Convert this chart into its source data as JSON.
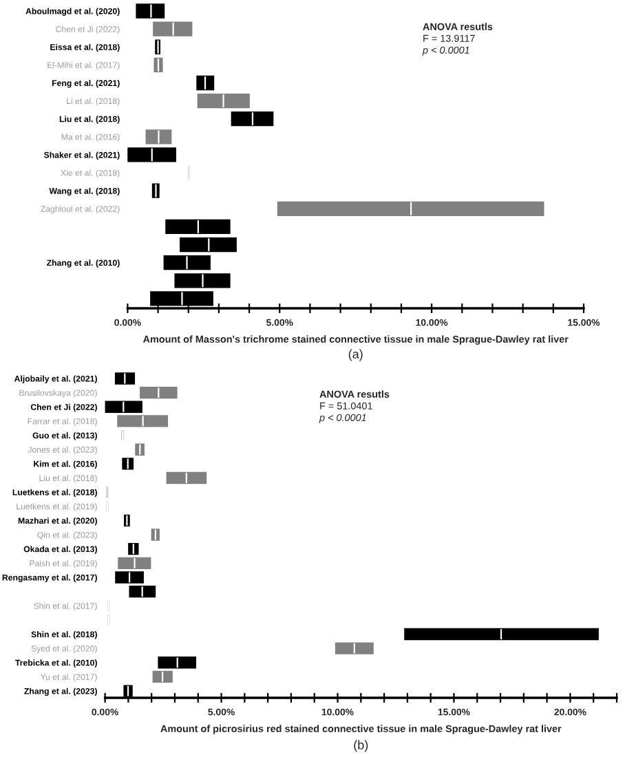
{
  "chart_data": [
    {
      "type": "box",
      "orientation": "horizontal",
      "grid": false,
      "xlabel": "Amount of Masson's trichrome stained connective tissue in male Sprague-Dawley rat liver",
      "annotations": [
        "ANOVA resutls",
        "F = 13.9117",
        "p < 0.0001",
        "(a)"
      ],
      "categories": [
        "Aboulmagd et al. (2020)",
        "Chen et Ji (2022)",
        "Eissa et al. (2018)",
        "El-Mihi et al. (2017)",
        "Feng et al. (2021)",
        "Li et al. (2018)",
        "Liu et al. (2018)",
        "Ma et al. (2016)",
        "Shaker et al. (2021)",
        "Xie et al. (2018)",
        "Wang et al. (2018)",
        "Zaghloul et al. (2022)",
        null,
        null,
        "Zhang et al. (2010)",
        null,
        null
      ],
      "colors": [
        "#000000",
        "#808080",
        "#000000",
        "#808080",
        "#000000",
        "#808080",
        "#000000",
        "#808080",
        "#000000",
        "#808080",
        "#000000",
        "#808080",
        "#000000",
        "#000000",
        "#000000",
        "#000000",
        "#000000"
      ],
      "boxes": [
        {
          "low": 0.3,
          "q1": 0.3,
          "median": 0.77,
          "q3": 1.19,
          "high": 1.19
        },
        {
          "low": 0.86,
          "q1": 0.86,
          "median": 1.5,
          "q3": 2.1,
          "high": 2.1
        },
        {
          "low": 0.93,
          "q1": 0.93,
          "median": 1.0,
          "q3": 1.05,
          "high": 1.05
        },
        {
          "low": 0.89,
          "q1": 0.89,
          "median": 1.01,
          "q3": 1.13,
          "high": 1.13
        },
        {
          "low": 2.29,
          "q1": 2.29,
          "median": 2.55,
          "q3": 2.82,
          "high": 2.82
        },
        {
          "low": 2.32,
          "q1": 2.32,
          "median": 3.15,
          "q3": 3.99,
          "high": 3.99
        },
        {
          "low": 3.43,
          "q1": 3.43,
          "median": 4.11,
          "q3": 4.77,
          "high": 4.77
        },
        {
          "low": 0.62,
          "q1": 0.62,
          "median": 1.02,
          "q3": 1.42,
          "high": 1.42
        },
        {
          "low": 0.0,
          "q1": 0.0,
          "median": 0.8,
          "q3": 1.57,
          "high": 1.57
        },
        {
          "low": 2.02,
          "q1": 2.02,
          "median": 2.02,
          "q3": 2.02,
          "high": 2.02
        },
        {
          "low": 0.83,
          "q1": 0.83,
          "median": 0.93,
          "q3": 1.02,
          "high": 1.02
        },
        {
          "low": 4.95,
          "q1": 4.95,
          "median": 9.32,
          "q3": 13.67,
          "high": 13.67
        },
        {
          "low": 1.27,
          "q1": 1.27,
          "median": 2.32,
          "q3": 3.35,
          "high": 3.35
        },
        {
          "low": 1.74,
          "q1": 1.74,
          "median": 2.67,
          "q3": 3.56,
          "high": 3.56
        },
        {
          "low": 1.21,
          "q1": 1.21,
          "median": 1.95,
          "q3": 2.7,
          "high": 2.7
        },
        {
          "low": 1.57,
          "q1": 1.57,
          "median": 2.47,
          "q3": 3.35,
          "high": 3.35
        },
        {
          "low": 0.77,
          "q1": 0.77,
          "median": 1.79,
          "q3": 2.79,
          "high": 2.79
        }
      ],
      "xlim": [
        0,
        15
      ],
      "xticks": [
        {
          "value": 0,
          "label": "0.00%"
        },
        {
          "value": 1,
          "label": null
        },
        {
          "value": 2,
          "label": null
        },
        {
          "value": 3,
          "label": null
        },
        {
          "value": 4,
          "label": null
        },
        {
          "value": 5,
          "label": "5.00%"
        },
        {
          "value": 6,
          "label": null
        },
        {
          "value": 7,
          "label": null
        },
        {
          "value": 8,
          "label": null
        },
        {
          "value": 9,
          "label": null
        },
        {
          "value": 10,
          "label": "10.00%"
        },
        {
          "value": 11,
          "label": null
        },
        {
          "value": 12,
          "label": null
        },
        {
          "value": 13,
          "label": null
        },
        {
          "value": 14,
          "label": null
        },
        {
          "value": 15,
          "label": "15.00%"
        }
      ]
    },
    {
      "type": "box",
      "orientation": "horizontal",
      "grid": false,
      "xlabel": "Amount of picrosirius red stained connective tissue in male Sprague-Dawley rat liver",
      "annotations": [
        "ANOVA resutls",
        "F = 51.0401",
        "p < 0.0001",
        "(b)"
      ],
      "categories": [
        "Aljobaily et al. (2021)",
        "Brusilovskaya (2020)",
        "Chen et Ji (2022)",
        "Farrar et al. (2018)",
        "Guo et al. (2013)",
        "Jones et al. (2023)",
        "Kim et al. (2016)",
        "Liu et al. (2018)",
        "Luetkens et al. (2018)",
        "Luetkens et al. (2019)",
        "Mazhari et al. (2020)",
        "Qin et al. (2023)",
        "Okada et al. (2013)",
        "Paish et al. (2019)",
        "Rengasamy et al. (2017)",
        null,
        "Shin et al. (2017)",
        null,
        "Shin et al. (2018)",
        "Syed et al. (2020)",
        "Trebicka et al. (2010)",
        "Yu et al. (2017)",
        "Zhang et al. (2023)"
      ],
      "colors": [
        "#000000",
        "#808080",
        "#000000",
        "#808080",
        "#000000",
        "#808080",
        "#000000",
        "#808080",
        "#000000",
        "#808080",
        "#000000",
        "#808080",
        "#000000",
        "#808080",
        "#000000",
        "#000000",
        "#808080",
        "#808080",
        "#000000",
        "#808080",
        "#000000",
        "#808080",
        "#000000"
      ],
      "boxes": [
        {
          "low": 0.46,
          "q1": 0.46,
          "median": 0.85,
          "q3": 1.25,
          "high": 1.25
        },
        {
          "low": 1.53,
          "q1": 1.53,
          "median": 2.3,
          "q3": 3.07,
          "high": 3.07
        },
        {
          "low": 0.02,
          "q1": 0.02,
          "median": 0.79,
          "q3": 1.57,
          "high": 1.57
        },
        {
          "low": 0.56,
          "q1": 0.56,
          "median": 1.63,
          "q3": 2.67,
          "high": 2.67
        },
        {
          "low": 0.75,
          "q1": 0.75,
          "median": 0.75,
          "q3": 0.75,
          "high": 0.75
        },
        {
          "low": 1.33,
          "q1": 1.33,
          "median": 1.5,
          "q3": 1.66,
          "high": 1.66
        },
        {
          "low": 0.77,
          "q1": 0.77,
          "median": 0.98,
          "q3": 1.19,
          "high": 1.19
        },
        {
          "low": 2.67,
          "q1": 2.67,
          "median": 3.5,
          "q3": 4.33,
          "high": 4.33
        },
        {
          "low": 0.08,
          "q1": 0.08,
          "median": 0.08,
          "q3": 0.08,
          "high": 0.08
        },
        {
          "low": 0.1,
          "q1": 0.1,
          "median": 0.1,
          "q3": 0.1,
          "high": 0.1
        },
        {
          "low": 0.85,
          "q1": 0.85,
          "median": 0.94,
          "q3": 1.03,
          "high": 1.03
        },
        {
          "low": 2.02,
          "q1": 2.02,
          "median": 2.17,
          "q3": 2.31,
          "high": 2.31
        },
        {
          "low": 1.03,
          "q1": 1.03,
          "median": 1.22,
          "q3": 1.41,
          "high": 1.41
        },
        {
          "low": 0.59,
          "q1": 0.59,
          "median": 1.27,
          "q3": 1.94,
          "high": 1.94
        },
        {
          "low": 0.47,
          "q1": 0.47,
          "median": 1.05,
          "q3": 1.63,
          "high": 1.63
        },
        {
          "low": 1.07,
          "q1": 1.07,
          "median": 1.6,
          "q3": 2.14,
          "high": 2.14
        },
        {
          "low": 0.16,
          "q1": 0.16,
          "median": 0.16,
          "q3": 0.16,
          "high": 0.16
        },
        {
          "low": 0.16,
          "q1": 0.16,
          "median": 0.16,
          "q3": 0.16,
          "high": 0.16
        },
        {
          "low": 12.9,
          "q1": 12.9,
          "median": 17.03,
          "q3": 21.19,
          "high": 21.19
        },
        {
          "low": 9.93,
          "q1": 9.93,
          "median": 10.72,
          "q3": 11.51,
          "high": 11.51
        },
        {
          "low": 2.31,
          "q1": 2.31,
          "median": 3.11,
          "q3": 3.88,
          "high": 3.88
        },
        {
          "low": 2.08,
          "q1": 2.08,
          "median": 2.47,
          "q3": 2.87,
          "high": 2.87
        },
        {
          "low": 0.83,
          "q1": 0.83,
          "median": 0.99,
          "q3": 1.15,
          "high": 1.15
        }
      ],
      "xlim": [
        0,
        22
      ],
      "xticks": [
        {
          "value": 0,
          "label": "0.00%"
        },
        {
          "value": 1,
          "label": null
        },
        {
          "value": 2,
          "label": null
        },
        {
          "value": 3,
          "label": null
        },
        {
          "value": 4,
          "label": null
        },
        {
          "value": 5,
          "label": "5.00%"
        },
        {
          "value": 6,
          "label": null
        },
        {
          "value": 7,
          "label": null
        },
        {
          "value": 8,
          "label": null
        },
        {
          "value": 9,
          "label": null
        },
        {
          "value": 10,
          "label": "10.00%"
        },
        {
          "value": 11,
          "label": null
        },
        {
          "value": 12,
          "label": null
        },
        {
          "value": 13,
          "label": null
        },
        {
          "value": 14,
          "label": null
        },
        {
          "value": 15,
          "label": "15.00%"
        },
        {
          "value": 16,
          "label": null
        },
        {
          "value": 17,
          "label": null
        },
        {
          "value": 18,
          "label": null
        },
        {
          "value": 19,
          "label": null
        },
        {
          "value": 20,
          "label": "20.00%"
        },
        {
          "value": 21,
          "label": null
        },
        {
          "value": 22,
          "label": null
        }
      ]
    }
  ]
}
